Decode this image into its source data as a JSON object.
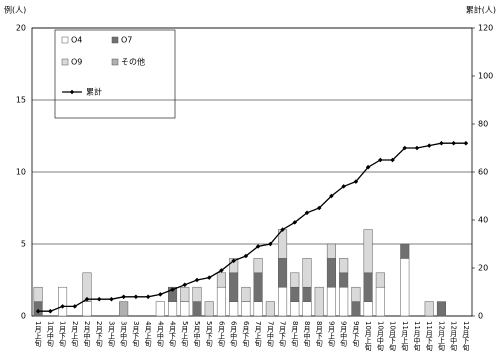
{
  "chart_data": {
    "type": "bar",
    "stacked": true,
    "y_label": "例(人)",
    "y2_label": "累計(人)",
    "categories": [
      "1月上旬",
      "1月中旬",
      "1月下旬",
      "2月上旬",
      "2月中旬",
      "2月下旬",
      "3月上旬",
      "3月中旬",
      "3月下旬",
      "4月上旬",
      "4月中旬",
      "4月下旬",
      "5月上旬",
      "5月中旬",
      "5月下旬",
      "6月上旬",
      "6月中旬",
      "6月下旬",
      "7月上旬",
      "7月中旬",
      "7月下旬",
      "8月上旬",
      "8月中旬",
      "8月下旬",
      "9月上旬",
      "9月中旬",
      "9月下旬",
      "10月上旬",
      "10月中旬",
      "10月下旬",
      "11月上旬",
      "11月中旬",
      "11月下旬",
      "12月上旬",
      "12月中旬",
      "12月下旬"
    ],
    "series": [
      {
        "name": "O4",
        "color": "#ffffff",
        "values": [
          0,
          0,
          2,
          0,
          1,
          0,
          0,
          0,
          0,
          0,
          1,
          1,
          1,
          0,
          0,
          2,
          1,
          1,
          1,
          0,
          2,
          1,
          1,
          0,
          2,
          2,
          0,
          1,
          2,
          0,
          4,
          0,
          0,
          0,
          0,
          0
        ]
      },
      {
        "name": "O7",
        "color": "#707070",
        "values": [
          1,
          0,
          0,
          0,
          0,
          0,
          0,
          0,
          0,
          0,
          0,
          1,
          0,
          1,
          0,
          0,
          2,
          0,
          2,
          0,
          2,
          1,
          1,
          0,
          2,
          1,
          1,
          2,
          0,
          0,
          1,
          0,
          0,
          1,
          0,
          0
        ]
      },
      {
        "name": "O9",
        "color": "#d9d9d9",
        "values": [
          1,
          0,
          0,
          0,
          2,
          0,
          0,
          0,
          0,
          0,
          0,
          0,
          1,
          1,
          1,
          1,
          1,
          1,
          1,
          1,
          2,
          1,
          2,
          2,
          1,
          1,
          1,
          3,
          1,
          0,
          0,
          0,
          1,
          0,
          0,
          0
        ]
      },
      {
        "name": "その他",
        "color": "#b0b0b0",
        "values": [
          0,
          0,
          0,
          0,
          0,
          0,
          0,
          1,
          0,
          0,
          0,
          0,
          0,
          0,
          0,
          0,
          0,
          0,
          0,
          0,
          0,
          0,
          0,
          0,
          0,
          0,
          0,
          0,
          0,
          0,
          0,
          0,
          0,
          0,
          0,
          0
        ]
      },
      {
        "name": "累計",
        "type": "line",
        "axis": "y2",
        "color": "#000000",
        "values": [
          2,
          2,
          4,
          4,
          7,
          7,
          7,
          8,
          8,
          8,
          9,
          11,
          13,
          15,
          16,
          19,
          23,
          25,
          29,
          30,
          36,
          39,
          43,
          45,
          50,
          54,
          56,
          62,
          65,
          65,
          70,
          70,
          71,
          72,
          72,
          72
        ]
      }
    ],
    "ylim": [
      0,
      20
    ],
    "yticks": [
      0,
      5,
      10,
      15,
      20
    ],
    "y2lim": [
      0,
      120
    ],
    "y2ticks": [
      0,
      20,
      40,
      60,
      80,
      100,
      120
    ],
    "grid": true
  }
}
